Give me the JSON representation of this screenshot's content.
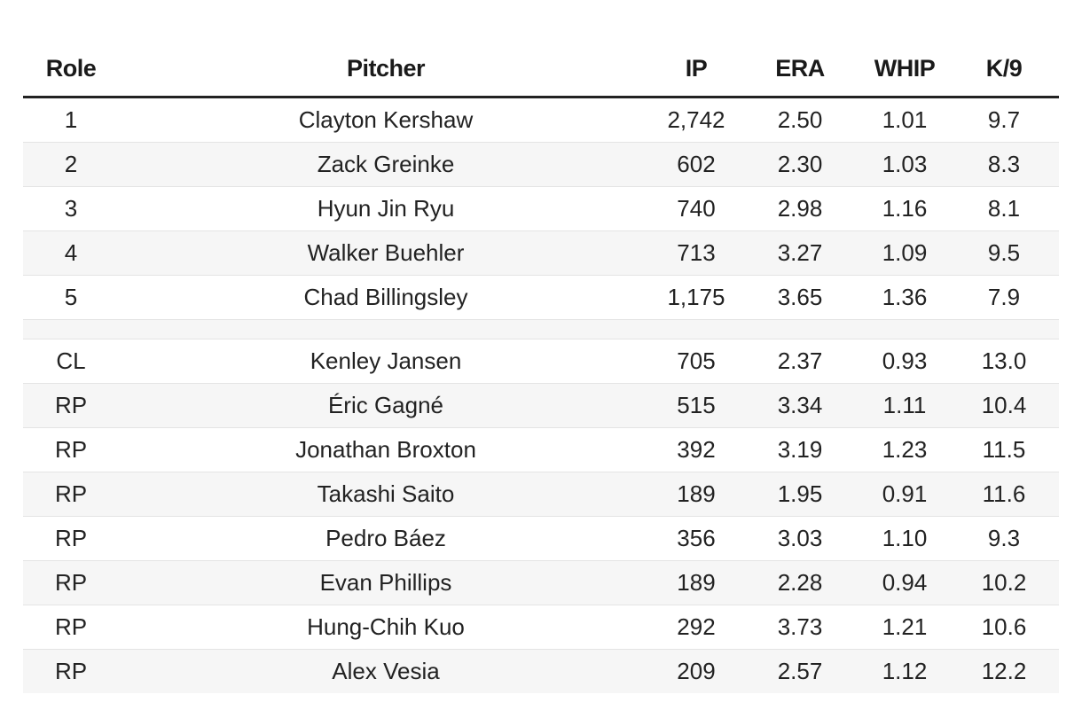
{
  "columns": {
    "role": "Role",
    "pitcher": "Pitcher",
    "ip": "IP",
    "era": "ERA",
    "whip": "WHIP",
    "k9": "K/9"
  },
  "starters": [
    {
      "role": "1",
      "pitcher": "Clayton Kershaw",
      "ip": "2,742",
      "era": "2.50",
      "whip": "1.01",
      "k9": "9.7"
    },
    {
      "role": "2",
      "pitcher": "Zack Greinke",
      "ip": "602",
      "era": "2.30",
      "whip": "1.03",
      "k9": "8.3"
    },
    {
      "role": "3",
      "pitcher": "Hyun Jin Ryu",
      "ip": "740",
      "era": "2.98",
      "whip": "1.16",
      "k9": "8.1"
    },
    {
      "role": "4",
      "pitcher": "Walker Buehler",
      "ip": "713",
      "era": "3.27",
      "whip": "1.09",
      "k9": "9.5"
    },
    {
      "role": "5",
      "pitcher": "Chad Billingsley",
      "ip": "1,175",
      "era": "3.65",
      "whip": "1.36",
      "k9": "7.9"
    }
  ],
  "bullpen": [
    {
      "role": "CL",
      "pitcher": "Kenley Jansen",
      "ip": "705",
      "era": "2.37",
      "whip": "0.93",
      "k9": "13.0"
    },
    {
      "role": "RP",
      "pitcher": "Éric Gagné",
      "ip": "515",
      "era": "3.34",
      "whip": "1.11",
      "k9": "10.4"
    },
    {
      "role": "RP",
      "pitcher": "Jonathan Broxton",
      "ip": "392",
      "era": "3.19",
      "whip": "1.23",
      "k9": "11.5"
    },
    {
      "role": "RP",
      "pitcher": "Takashi Saito",
      "ip": "189",
      "era": "1.95",
      "whip": "0.91",
      "k9": "11.6"
    },
    {
      "role": "RP",
      "pitcher": "Pedro Báez",
      "ip": "356",
      "era": "3.03",
      "whip": "1.10",
      "k9": "9.3"
    },
    {
      "role": "RP",
      "pitcher": "Evan Phillips",
      "ip": "189",
      "era": "2.28",
      "whip": "0.94",
      "k9": "10.2"
    },
    {
      "role": "RP",
      "pitcher": "Hung-Chih Kuo",
      "ip": "292",
      "era": "3.73",
      "whip": "1.21",
      "k9": "10.6"
    },
    {
      "role": "RP",
      "pitcher": "Alex Vesia",
      "ip": "209",
      "era": "2.57",
      "whip": "1.12",
      "k9": "12.2"
    }
  ]
}
